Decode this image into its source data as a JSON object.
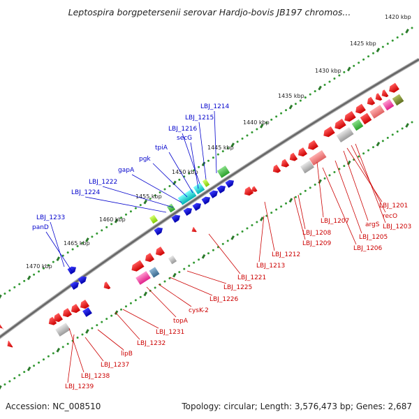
{
  "title": "Leptospira borgpetersenii serovar Hardjo-bovis JB197 chromos...",
  "footer": {
    "accession": "Accession: NC_008510",
    "topology": "Topology: circular; Length: 3,576,473 bp; Genes: 2,687"
  },
  "scale_labels": [
    "1420 kbp",
    "1425 kbp",
    "1430 kbp",
    "1435 kbp",
    "1440 kbp",
    "1445 kbp",
    "1450 kbp",
    "1455 kbp",
    "1460 kbp",
    "1465 kbp",
    "1470 kbp"
  ],
  "colors": {
    "backbone": "#666666",
    "forward_label": "#0000cc",
    "reverse_label": "#cc0000",
    "tick": "#2a7a2a",
    "tick_dot": "#339933"
  },
  "forward_labels": [
    "LBJ_1214",
    "LBJ_1215",
    "LBJ_1216",
    "secG",
    "tpiA",
    "pgk",
    "gapA",
    "LBJ_1222",
    "LBJ_1224",
    "LBJ_1233",
    "panD"
  ],
  "reverse_labels": [
    "LBJ_1201",
    "recO",
    "argS",
    "LBJ_1203",
    "LBJ_1205",
    "LBJ_1206",
    "LBJ_1207",
    "LBJ_1208",
    "LBJ_1209",
    "LBJ_1212",
    "LBJ_1213",
    "LBJ_1221",
    "LBJ_1225",
    "LBJ_1226",
    "cysK-2",
    "topA",
    "LBJ_1231",
    "LBJ_1232",
    "lipB",
    "LBJ_1237",
    "LBJ_1238",
    "LBJ_1239"
  ]
}
